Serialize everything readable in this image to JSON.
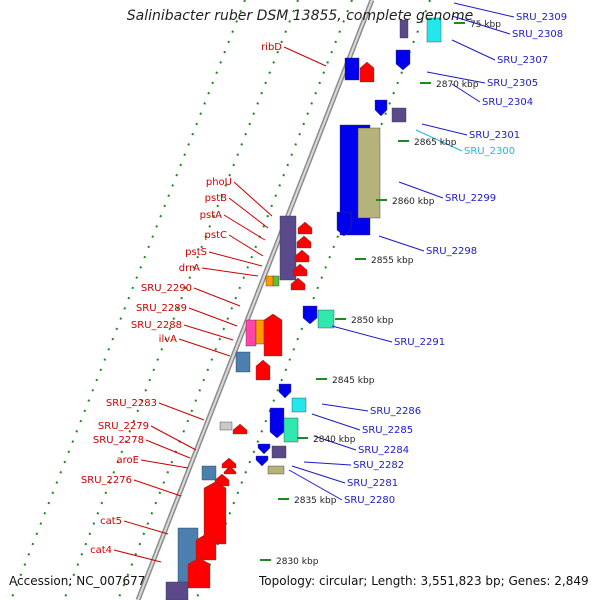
{
  "title": "Salinibacter ruber DSM 13855, complete genome",
  "footer": {
    "accession": "Accession: NC_007677",
    "topology": "Topology: circular; Length: 3,551,823 bp; Genes: 2,849"
  },
  "colors": {
    "forward": "#ff0000",
    "reverse": "#0000ee",
    "purple": "#5a4a8c",
    "khaki": "#b5b27a",
    "cyan": "#22e8ee",
    "teal": "#2ee8b0",
    "steelblue": "#4a7fb0",
    "magenta": "#ff44aa",
    "orange": "#ff9a00",
    "green": "#5fbf3a",
    "grey": "#9a9a9a",
    "ticks": "#1c8a1c"
  },
  "scale_ticks": [
    {
      "label": "2830 kbp"
    },
    {
      "label": "2835 kbp"
    },
    {
      "label": "2840 kbp"
    },
    {
      "label": "2845 kbp"
    },
    {
      "label": "2850 kbp"
    },
    {
      "label": "2855 kbp"
    },
    {
      "label": "2860 kbp"
    },
    {
      "label": "2865 kbp"
    },
    {
      "label": "2870 kbp"
    },
    {
      "label": "75 kbp"
    }
  ],
  "left_labels": [
    {
      "text": "ribD"
    },
    {
      "text": "phoU"
    },
    {
      "text": "pstB"
    },
    {
      "text": "pstA"
    },
    {
      "text": "pstC"
    },
    {
      "text": "pstS"
    },
    {
      "text": "drrA"
    },
    {
      "text": "SRU_2290"
    },
    {
      "text": "SRU_2289"
    },
    {
      "text": "SRU_2288"
    },
    {
      "text": "ilvA"
    },
    {
      "text": "SRU_2283"
    },
    {
      "text": "SRU_2279"
    },
    {
      "text": "SRU_2278"
    },
    {
      "text": "aroE"
    },
    {
      "text": "SRU_2276"
    },
    {
      "text": "cat5"
    },
    {
      "text": "cat4"
    }
  ],
  "right_labels": [
    {
      "text": "SRU_2309"
    },
    {
      "text": "SRU_2308"
    },
    {
      "text": "SRU_2307"
    },
    {
      "text": "SRU_2305"
    },
    {
      "text": "SRU_2304"
    },
    {
      "text": "SRU_2301"
    },
    {
      "text": "SRU_2300",
      "highlight": true
    },
    {
      "text": "SRU_2299"
    },
    {
      "text": "SRU_2298"
    },
    {
      "text": "SRU_2291"
    },
    {
      "text": "SRU_2286"
    },
    {
      "text": "SRU_2285"
    },
    {
      "text": "SRU_2284"
    },
    {
      "text": "SRU_2282"
    },
    {
      "text": "SRU_2281"
    },
    {
      "text": "SRU_2280"
    }
  ]
}
